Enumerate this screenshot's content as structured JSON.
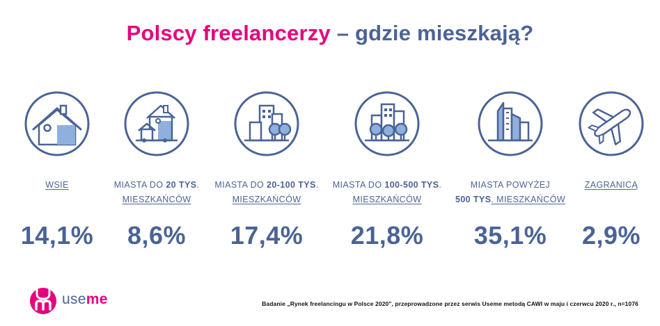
{
  "title": {
    "part1": "Polscy freelancerzy",
    "part2": "– gdzie mieszkają?"
  },
  "chart_data": {
    "type": "table",
    "title": "Polscy freelancerzy – gdzie mieszkają?",
    "categories": [
      {
        "line1": "WSIE",
        "line2": "",
        "value": "14,1%",
        "icon": "house-icon"
      },
      {
        "line1_pre": "MIASTA DO ",
        "line1_bold": "20 TYS",
        "line1_post": ".",
        "line2": "MIESZKAŃCÓW",
        "value": "8,6%",
        "icon": "small-town-icon"
      },
      {
        "line1_pre": "MIASTA DO ",
        "line1_bold": "20-100 TYS",
        "line1_post": ".",
        "line2": "MIESZKAŃCÓW",
        "value": "17,4%",
        "icon": "town-icon"
      },
      {
        "line1_pre": "MIASTA DO ",
        "line1_bold": "100-500 TYS",
        "line1_post": ".",
        "line2": "MIESZKAŃCÓW",
        "value": "21,8%",
        "icon": "city-icon"
      },
      {
        "line1": "MIASTA POWYŻEJ",
        "line2_bold": "500 TYS",
        "line2_post": ". MIESZKAŃCÓW",
        "value": "35,1%",
        "icon": "skyscrapers-icon"
      },
      {
        "line1": "ZAGRANICĄ",
        "line2": "",
        "value": "2,9%",
        "icon": "airplane-icon"
      }
    ],
    "values": [
      14.1,
      8.6,
      17.4,
      21.8,
      35.1,
      2.9
    ]
  },
  "logo": {
    "part1": "use",
    "part2": "me"
  },
  "footnote": "Badanie „Rynek freelancingu w Polsce 2020\", przeprowadzone przez serwis Useme metodą CAWI w maju i czerwcu 2020 r., n=1076",
  "colors": {
    "pink": "#e5007e",
    "blue": "#4a6396",
    "light_blue": "#8fb0dc"
  }
}
